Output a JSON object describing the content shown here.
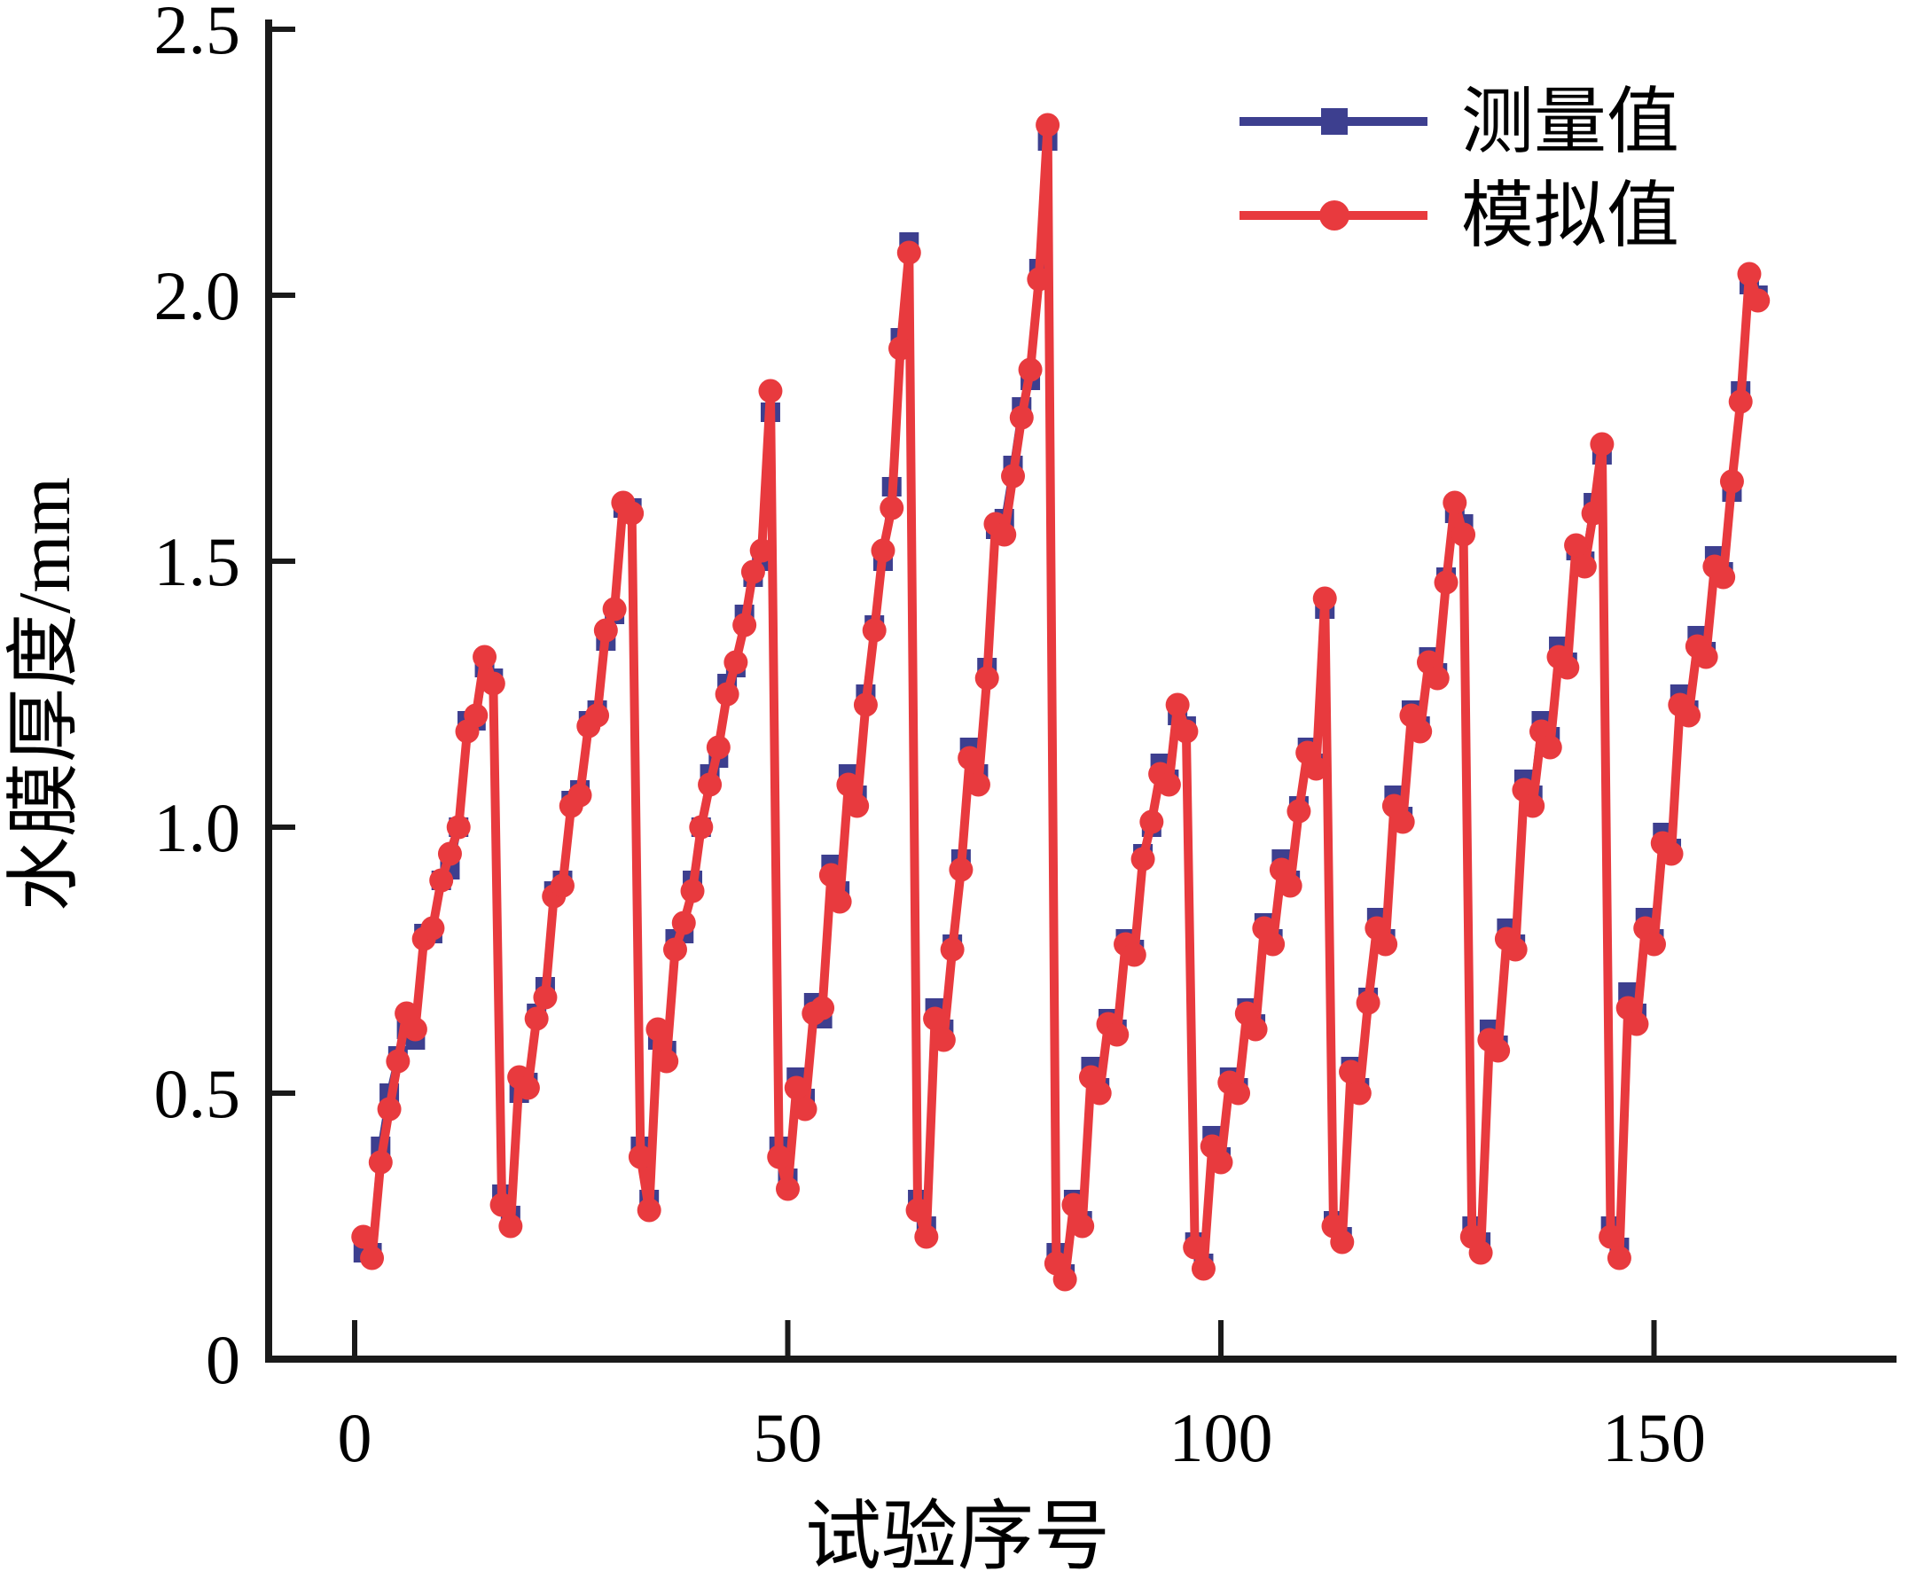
{
  "figure": {
    "background": "#ffffff",
    "axis_color": "#1a1a1a"
  },
  "chart_data": {
    "type": "line",
    "title": "",
    "xlabel": "试验序号",
    "ylabel": "水膜厚度/mm",
    "grid": false,
    "legend_position": "top-right",
    "xlim": [
      -10,
      178
    ],
    "ylim": [
      0,
      2.5
    ],
    "x_tick_values": [
      0,
      50,
      100,
      150
    ],
    "x_tick_labels": [
      "0",
      "50",
      "100",
      "150"
    ],
    "y_tick_values": [
      0,
      0.5,
      1.0,
      1.5,
      2.0,
      2.5
    ],
    "y_tick_labels": [
      "0",
      "0.5",
      "1.0",
      "1.5",
      "2.0",
      "2.5"
    ],
    "x_start": 1,
    "series": [
      {
        "name": "测量值",
        "marker": "square",
        "color": "#3d3f8f",
        "line_width": 7,
        "values": [
          0.2,
          0.2,
          0.4,
          0.5,
          0.57,
          0.62,
          0.6,
          0.8,
          0.8,
          0.9,
          0.92,
          1.0,
          1.2,
          1.2,
          1.3,
          1.28,
          0.31,
          0.27,
          0.5,
          0.52,
          0.65,
          0.7,
          0.88,
          0.9,
          1.05,
          1.07,
          1.2,
          1.22,
          1.35,
          1.4,
          1.6,
          1.6,
          0.4,
          0.3,
          0.6,
          0.58,
          0.79,
          0.8,
          0.9,
          1.0,
          1.1,
          1.13,
          1.27,
          1.3,
          1.4,
          1.47,
          1.5,
          1.78,
          0.4,
          0.34,
          0.53,
          0.49,
          0.67,
          0.64,
          0.93,
          0.88,
          1.1,
          1.06,
          1.25,
          1.38,
          1.5,
          1.64,
          1.92,
          2.1,
          0.3,
          0.25,
          0.66,
          0.62,
          0.78,
          0.94,
          1.15,
          1.1,
          1.3,
          1.56,
          1.58,
          1.68,
          1.79,
          1.84,
          2.05,
          2.29,
          0.2,
          0.16,
          0.3,
          0.26,
          0.55,
          0.51,
          0.64,
          0.62,
          0.79,
          0.77,
          0.95,
          1.0,
          1.12,
          1.09,
          1.21,
          1.19,
          0.22,
          0.18,
          0.42,
          0.38,
          0.53,
          0.51,
          0.66,
          0.63,
          0.82,
          0.79,
          0.94,
          0.9,
          1.04,
          1.15,
          1.12,
          1.41,
          0.26,
          0.23,
          0.55,
          0.51,
          0.68,
          0.83,
          0.79,
          1.06,
          1.02,
          1.22,
          1.19,
          1.32,
          1.29,
          1.47,
          1.59,
          1.57,
          0.25,
          0.22,
          0.62,
          0.59,
          0.81,
          0.78,
          1.09,
          1.06,
          1.2,
          1.17,
          1.34,
          1.31,
          1.52,
          1.5,
          1.61,
          1.7,
          0.25,
          0.21,
          0.69,
          0.65,
          0.83,
          0.79,
          0.99,
          0.96,
          1.25,
          1.22,
          1.36,
          1.33,
          1.51,
          1.48,
          1.63,
          1.82,
          2.02,
          2.0
        ]
      },
      {
        "name": "模拟值",
        "marker": "circle",
        "color": "#e83a3e",
        "line_width": 10,
        "values": [
          0.23,
          0.19,
          0.37,
          0.47,
          0.56,
          0.65,
          0.62,
          0.79,
          0.81,
          0.9,
          0.95,
          1.0,
          1.18,
          1.21,
          1.32,
          1.27,
          0.29,
          0.25,
          0.53,
          0.51,
          0.64,
          0.68,
          0.87,
          0.89,
          1.04,
          1.06,
          1.19,
          1.21,
          1.37,
          1.41,
          1.61,
          1.59,
          0.38,
          0.28,
          0.62,
          0.56,
          0.77,
          0.82,
          0.88,
          1.0,
          1.08,
          1.15,
          1.25,
          1.31,
          1.38,
          1.48,
          1.52,
          1.82,
          0.38,
          0.32,
          0.51,
          0.47,
          0.65,
          0.66,
          0.91,
          0.86,
          1.08,
          1.04,
          1.23,
          1.37,
          1.52,
          1.6,
          1.9,
          2.08,
          0.28,
          0.23,
          0.64,
          0.6,
          0.77,
          0.92,
          1.13,
          1.08,
          1.28,
          1.57,
          1.55,
          1.66,
          1.77,
          1.86,
          2.03,
          2.32,
          0.18,
          0.15,
          0.29,
          0.25,
          0.53,
          0.5,
          0.63,
          0.61,
          0.78,
          0.76,
          0.94,
          1.01,
          1.1,
          1.08,
          1.23,
          1.18,
          0.21,
          0.17,
          0.4,
          0.37,
          0.52,
          0.5,
          0.65,
          0.62,
          0.81,
          0.78,
          0.92,
          0.89,
          1.03,
          1.14,
          1.11,
          1.43,
          0.25,
          0.22,
          0.54,
          0.5,
          0.67,
          0.81,
          0.78,
          1.04,
          1.01,
          1.21,
          1.18,
          1.31,
          1.28,
          1.46,
          1.61,
          1.55,
          0.23,
          0.2,
          0.6,
          0.58,
          0.79,
          0.77,
          1.07,
          1.04,
          1.18,
          1.15,
          1.32,
          1.3,
          1.53,
          1.49,
          1.59,
          1.72,
          0.23,
          0.19,
          0.66,
          0.63,
          0.81,
          0.78,
          0.97,
          0.95,
          1.23,
          1.21,
          1.34,
          1.32,
          1.49,
          1.47,
          1.65,
          1.8,
          2.04,
          1.99
        ]
      }
    ]
  }
}
